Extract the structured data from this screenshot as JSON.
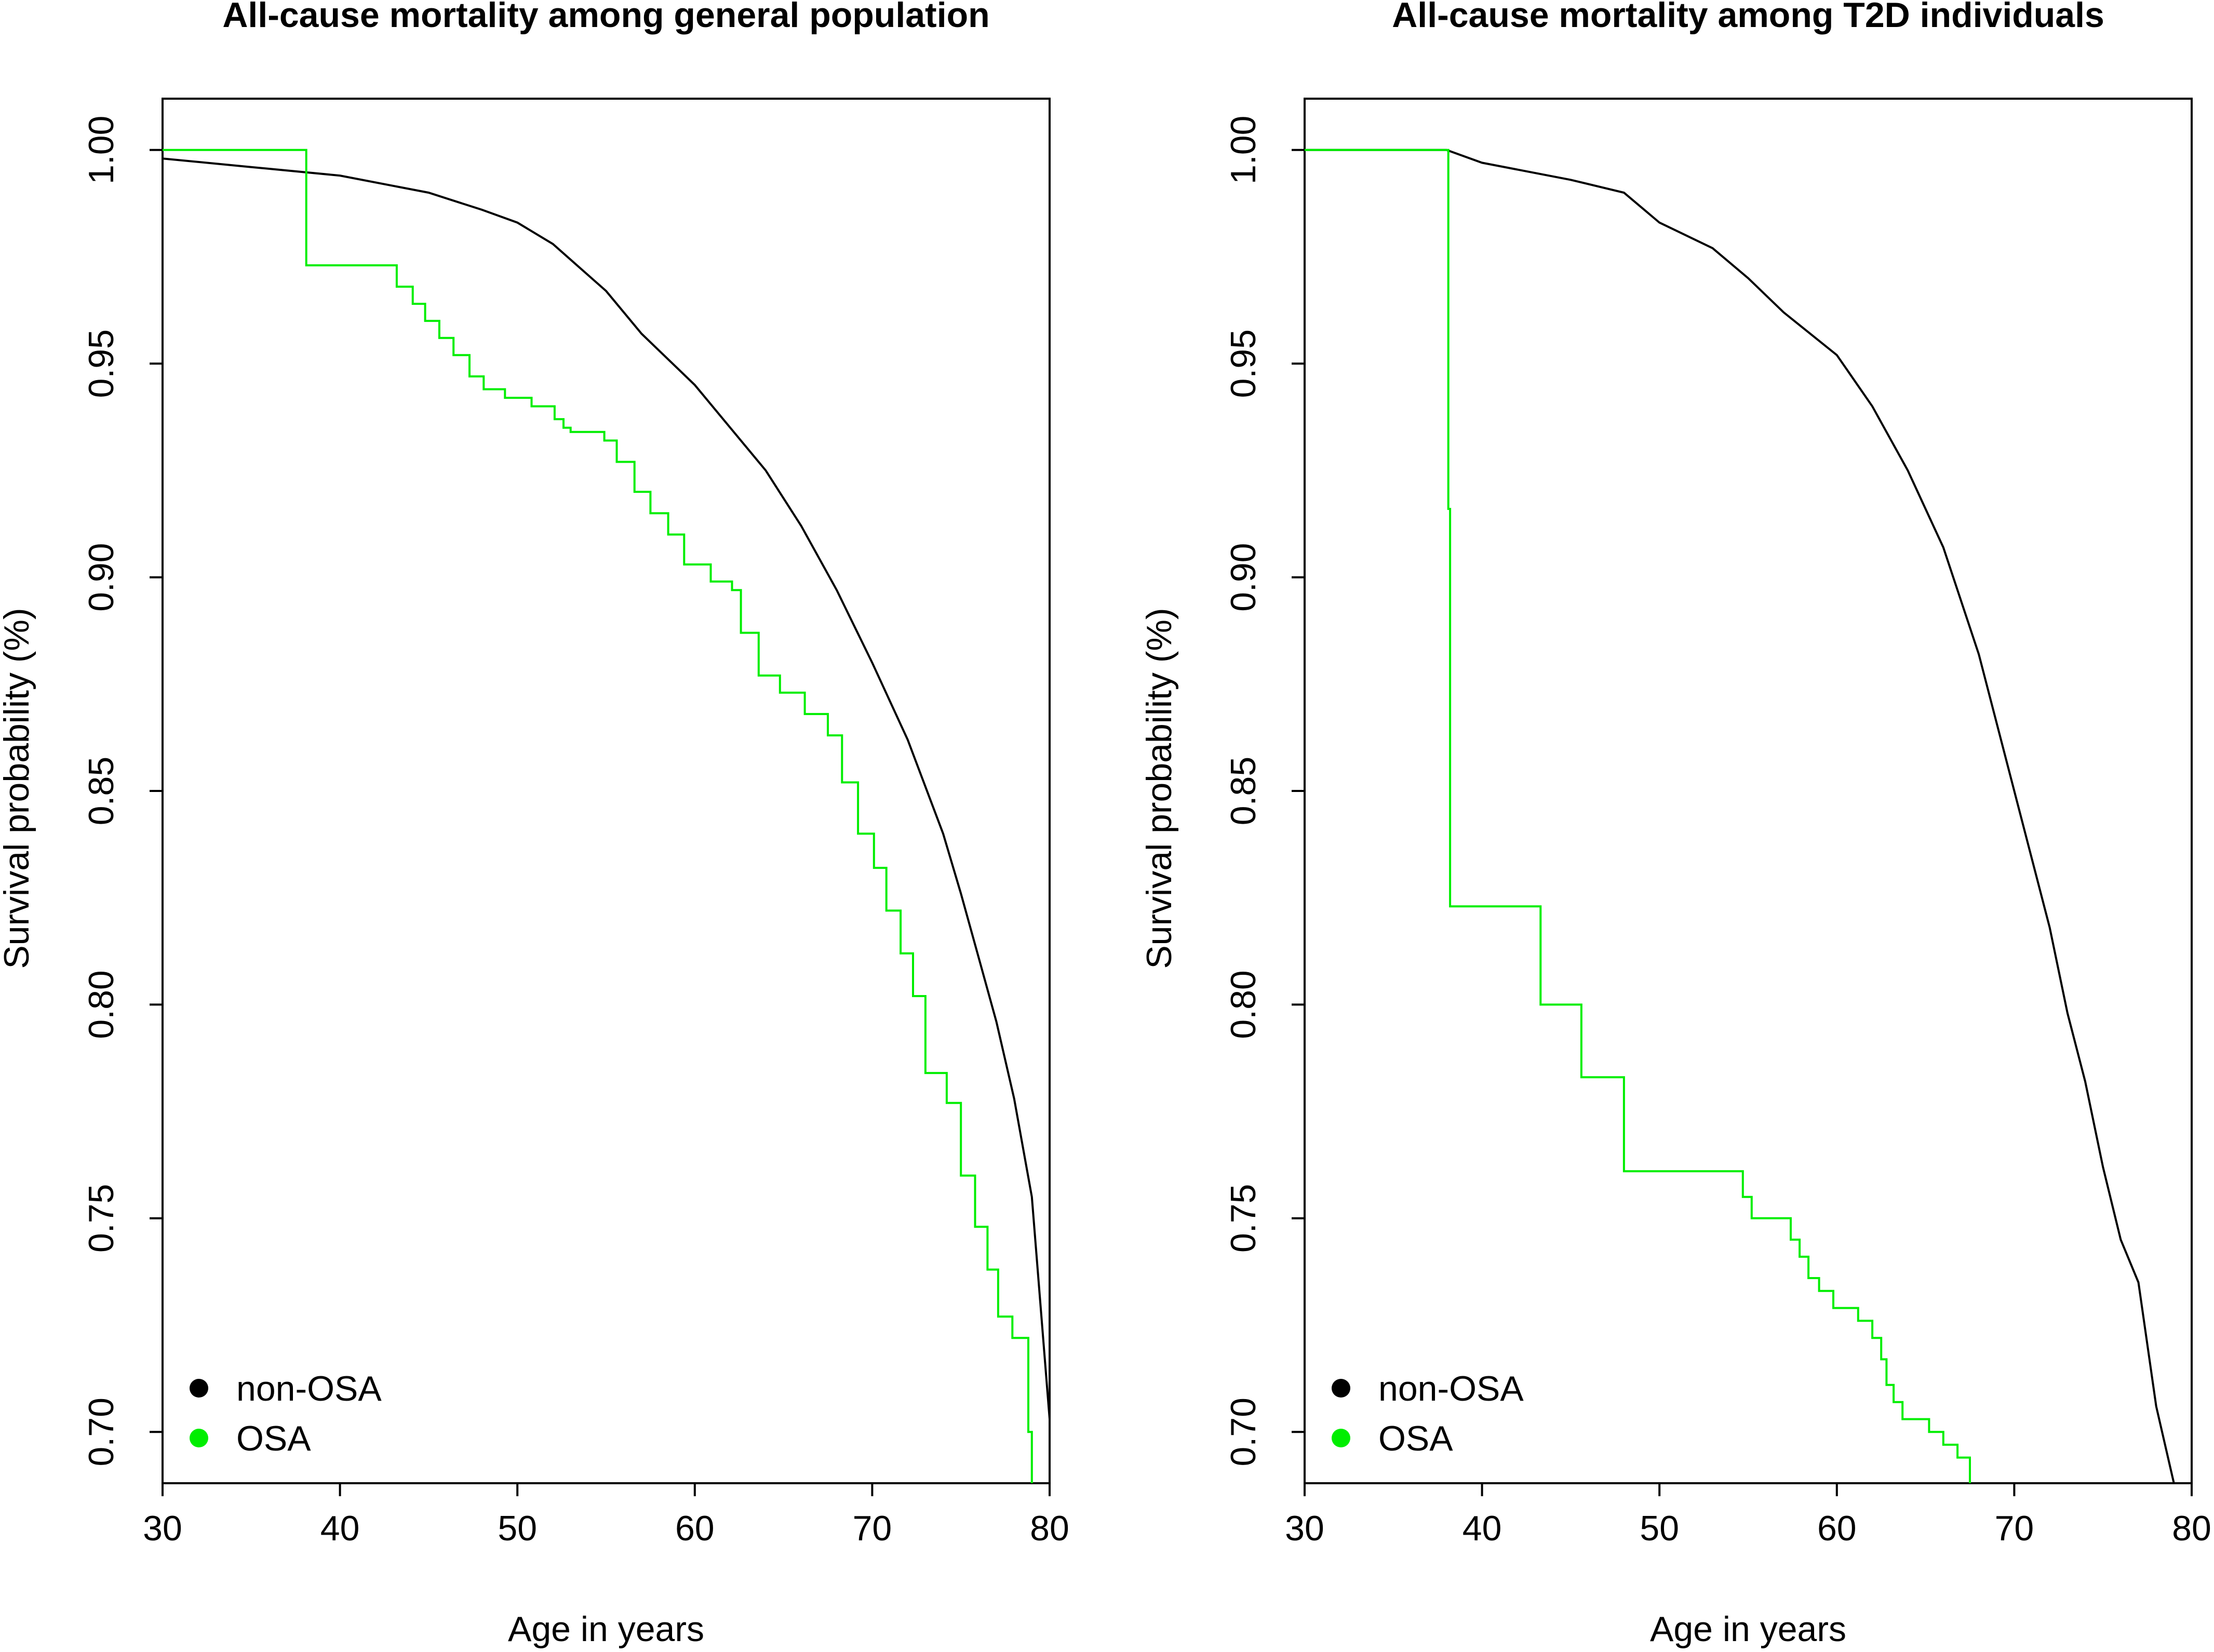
{
  "chart_data": [
    {
      "type": "line",
      "title": "All-cause mortality among general population",
      "xlabel": "Age in years",
      "ylabel": "Survival probability (%)",
      "xlim": [
        30,
        80
      ],
      "ylim": [
        0.688,
        1.012
      ],
      "x_ticks": [
        "30",
        "40",
        "50",
        "60",
        "70",
        "80"
      ],
      "y_ticks": [
        "0.70",
        "0.75",
        "0.80",
        "0.85",
        "0.90",
        "0.95",
        "1.00"
      ],
      "legend": {
        "position": "bottom-left",
        "entries": [
          "non-OSA",
          "OSA"
        ]
      },
      "grid": false,
      "series": [
        {
          "name": "non-OSA",
          "color": "#000000",
          "step": false,
          "x": [
            30,
            35,
            40,
            45,
            48,
            50,
            52,
            55,
            57,
            60,
            62,
            64,
            66,
            68,
            70,
            72,
            74,
            75,
            76,
            77,
            78,
            79,
            80
          ],
          "y": [
            0.998,
            0.996,
            0.994,
            0.99,
            0.986,
            0.983,
            0.978,
            0.967,
            0.957,
            0.945,
            0.935,
            0.925,
            0.912,
            0.897,
            0.88,
            0.862,
            0.84,
            0.826,
            0.811,
            0.796,
            0.778,
            0.755,
            0.703
          ]
        },
        {
          "name": "OSA",
          "color": "#00ee00",
          "step": true,
          "x": [
            30,
            38.1,
            43.2,
            44.1,
            44.8,
            45.6,
            46.4,
            47.3,
            48.1,
            49.3,
            50.8,
            52.1,
            52.6,
            53.0,
            54.9,
            55.6,
            56.6,
            57.5,
            58.5,
            59.4,
            60.9,
            62.1,
            62.6,
            63.6,
            64.8,
            66.2,
            67.5,
            68.3,
            69.2,
            70.1,
            70.8,
            71.6,
            72.3,
            73.0,
            74.2,
            75.0,
            75.8,
            76.5,
            77.1,
            77.9,
            78.8,
            79.0
          ],
          "y": [
            1.0,
            0.973,
            0.968,
            0.964,
            0.96,
            0.956,
            0.952,
            0.947,
            0.944,
            0.942,
            0.94,
            0.937,
            0.935,
            0.934,
            0.932,
            0.927,
            0.92,
            0.915,
            0.91,
            0.903,
            0.899,
            0.897,
            0.887,
            0.877,
            0.873,
            0.868,
            0.863,
            0.852,
            0.84,
            0.832,
            0.822,
            0.812,
            0.802,
            0.784,
            0.777,
            0.76,
            0.748,
            0.738,
            0.727,
            0.722,
            0.7,
            0.688
          ]
        }
      ]
    },
    {
      "type": "line",
      "title": "All-cause mortality among T2D individuals",
      "xlabel": "Age in years",
      "ylabel": "Survival probability (%)",
      "xlim": [
        30,
        80
      ],
      "ylim": [
        0.688,
        1.012
      ],
      "x_ticks": [
        "30",
        "40",
        "50",
        "60",
        "70",
        "80"
      ],
      "y_ticks": [
        "0.70",
        "0.75",
        "0.80",
        "0.85",
        "0.90",
        "0.95",
        "1.00"
      ],
      "legend": {
        "position": "bottom-left",
        "entries": [
          "non-OSA",
          "OSA"
        ]
      },
      "grid": false,
      "series": [
        {
          "name": "non-OSA",
          "color": "#000000",
          "step": false,
          "x": [
            30,
            38,
            40,
            45,
            48,
            50,
            53,
            55,
            57,
            60,
            62,
            64,
            66,
            68,
            70,
            72,
            73,
            74,
            75,
            76,
            77,
            78,
            79
          ],
          "y": [
            1.0,
            1.0,
            0.997,
            0.993,
            0.99,
            0.983,
            0.977,
            0.97,
            0.962,
            0.952,
            0.94,
            0.925,
            0.907,
            0.882,
            0.85,
            0.818,
            0.798,
            0.782,
            0.762,
            0.745,
            0.735,
            0.706,
            0.688
          ]
        },
        {
          "name": "OSA",
          "color": "#00ee00",
          "step": true,
          "x": [
            30,
            38.1,
            38.2,
            43.3,
            45.6,
            48.0,
            54.7,
            55.2,
            57.4,
            57.9,
            58.4,
            59.0,
            59.8,
            61.2,
            62.0,
            62.5,
            62.8,
            63.2,
            63.7,
            65.2,
            66.0,
            66.8,
            67.5
          ],
          "y": [
            1.0,
            0.916,
            0.823,
            0.8,
            0.783,
            0.761,
            0.755,
            0.75,
            0.745,
            0.741,
            0.736,
            0.733,
            0.729,
            0.726,
            0.722,
            0.717,
            0.711,
            0.707,
            0.703,
            0.7,
            0.697,
            0.694,
            0.688
          ]
        }
      ]
    }
  ]
}
